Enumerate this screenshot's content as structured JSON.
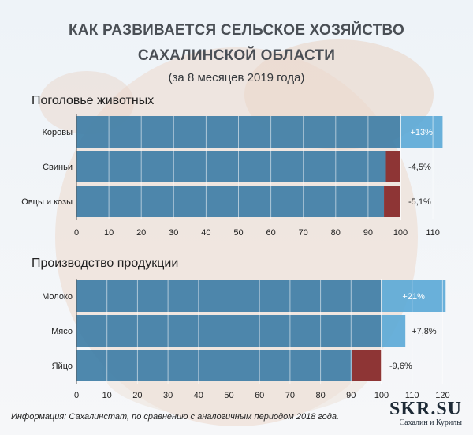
{
  "header": {
    "title_line1": "КАК РАЗВИВАЕТСЯ СЕЛЬСКОЕ ХОЗЯЙСТВО",
    "title_line2": "САХАЛИНСКОЙ ОБЛАСТИ",
    "subtitle": "(за 8 месяцев 2019 года)"
  },
  "footnote": "Информация: Сахалинстат, по сравнению с  аналогичным периодом 2018 года.",
  "logo": {
    "main": "SKR.SU",
    "sub": "Сахалин и Курилы"
  },
  "colors": {
    "base_bar": "#3f7ea6",
    "increase": "#5aa8d6",
    "decrease": "#8e3535",
    "gridline": "#ffffff"
  },
  "chart_data": [
    {
      "type": "bar",
      "orientation": "horizontal",
      "title": "Поголовье животных",
      "categories": [
        "Коровы",
        "Свиньи",
        "Овцы и козы"
      ],
      "baseline": 100,
      "values": [
        113,
        95.5,
        94.9
      ],
      "change_labels": [
        "+13%",
        "-4,5%",
        "-5,1%"
      ],
      "ticks": [
        0,
        10,
        20,
        30,
        40,
        50,
        60,
        70,
        80,
        90,
        100,
        110
      ],
      "xlim": [
        0,
        114
      ]
    },
    {
      "type": "bar",
      "orientation": "horizontal",
      "title": "Производство продукции",
      "categories": [
        "Молоко",
        "Мясо",
        "Яйцо"
      ],
      "baseline": 100,
      "values": [
        121,
        107.8,
        90.4
      ],
      "change_labels": [
        "+21%",
        "+7,8%",
        "-9,6%"
      ],
      "ticks": [
        0,
        10,
        20,
        30,
        40,
        50,
        60,
        70,
        80,
        90,
        100,
        110,
        120
      ],
      "xlim": [
        0,
        124
      ]
    }
  ]
}
